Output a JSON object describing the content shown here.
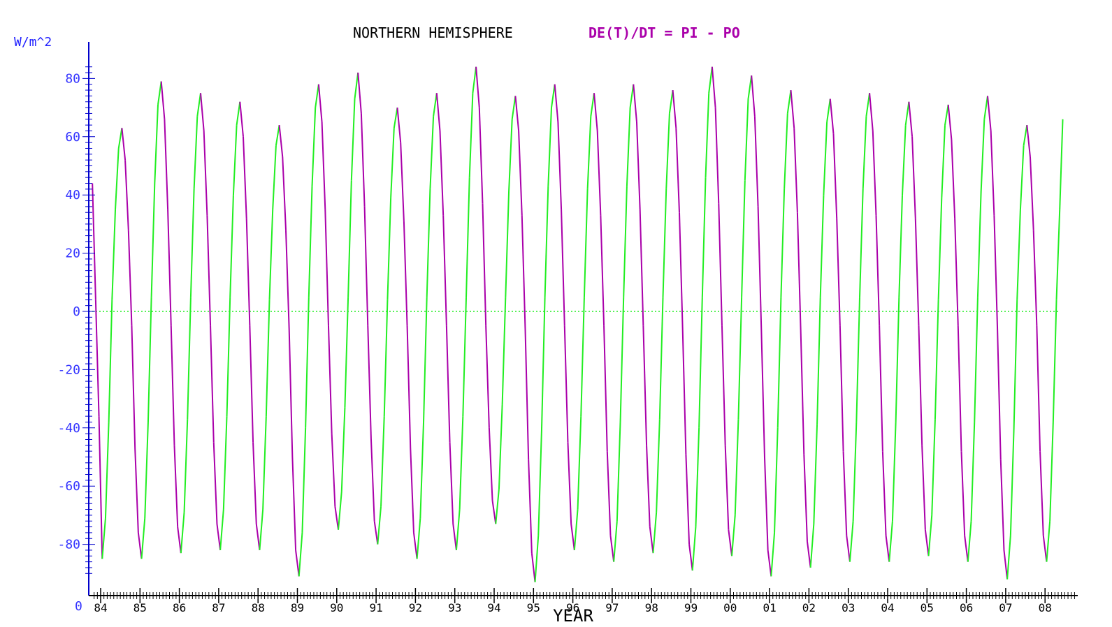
{
  "chart_data": {
    "type": "line",
    "title": "NORTHERN HEMISPHERE",
    "subtitle": "DE(T)/DT = PI - PO",
    "ylabel": "W/m^2",
    "xlabel": "YEAR",
    "corner_label": "0",
    "ylim": [
      -95,
      90
    ],
    "xlim": [
      1983.8,
      2008.6
    ],
    "yticks": [
      80,
      60,
      40,
      20,
      0,
      -20,
      -40,
      -60,
      -80
    ],
    "ytick_labels": [
      "80",
      "60",
      "40",
      "20",
      "0",
      "-20",
      "-40",
      "-60",
      "-80"
    ],
    "xticks": [
      1984,
      1985,
      1986,
      1987,
      1988,
      1989,
      1990,
      1991,
      1992,
      1993,
      1994,
      1995,
      1996,
      1997,
      1998,
      1999,
      2000,
      2001,
      2002,
      2003,
      2004,
      2005,
      2006,
      2007,
      2008
    ],
    "xtick_labels": [
      "84",
      "85",
      "86",
      "87",
      "88",
      "89",
      "90",
      "91",
      "92",
      "93",
      "94",
      "95",
      "96",
      "97",
      "98",
      "99",
      "00",
      "01",
      "02",
      "03",
      "04",
      "05",
      "06",
      "07",
      "08"
    ],
    "reference_line": 0,
    "grid": false,
    "colors": {
      "increasing": "#22ee22",
      "decreasing": "#aa00aa",
      "zero_line": "#22ee22",
      "axis": "#000000",
      "y_axis": "#0000cc",
      "tick_text": "#3333ff",
      "title_formula": "#aa00aa"
    },
    "series": [
      {
        "monthly_start": 1983.79,
        "troughs": [
          -85,
          -85,
          -83,
          -82,
          -82,
          -91,
          -75,
          -80,
          -85,
          -82,
          -73,
          -93,
          -82,
          -86,
          -83,
          -89,
          -84,
          -91,
          -88,
          -86,
          -86,
          -84,
          -86,
          -92,
          -86
        ],
        "peaks": [
          63,
          79,
          75,
          72,
          64,
          78,
          82,
          70,
          75,
          84,
          74,
          78,
          75,
          78,
          76,
          84,
          81,
          76,
          73,
          75,
          72,
          71,
          74,
          64
        ]
      }
    ]
  }
}
